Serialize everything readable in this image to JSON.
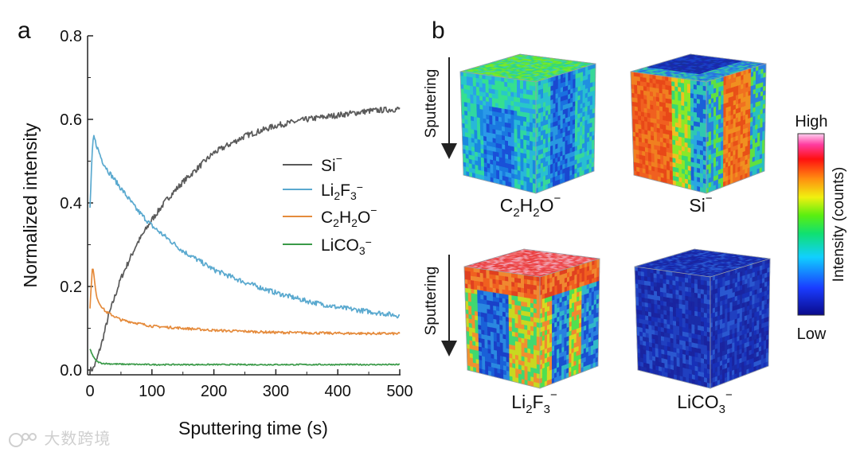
{
  "panel_a": {
    "label": "a"
  },
  "panel_b": {
    "label": "b",
    "sputtering_label": "Sputtering",
    "colorbar": {
      "high": "High",
      "low": "Low",
      "title": "Intensity (counts)"
    },
    "cubes": [
      {
        "id": "c2h2o",
        "base": "C",
        "sub1": "2",
        "mid": "H",
        "sub2": "2",
        "tail": "O",
        "sup": "−",
        "palette": "mixed-cyan"
      },
      {
        "id": "si",
        "base": "Si",
        "sub1": "",
        "mid": "",
        "sub2": "",
        "tail": "",
        "sup": "−",
        "palette": "orange-sides"
      },
      {
        "id": "li2f3",
        "base": "Li",
        "sub1": "2",
        "mid": "F",
        "sub2": "3",
        "tail": "",
        "sup": "−",
        "palette": "red-top"
      },
      {
        "id": "lico3",
        "base": "LiCO",
        "sub1": "3",
        "mid": "",
        "sub2": "",
        "tail": "",
        "sup": "−",
        "palette": "blue"
      }
    ]
  },
  "chart_data": {
    "type": "line",
    "title": "",
    "xlabel": "Sputtering time (s)",
    "ylabel": "Normalized intensity",
    "xlim": [
      0,
      500
    ],
    "ylim": [
      0,
      0.8
    ],
    "xticks": [
      "0",
      "100",
      "200",
      "300",
      "400",
      "500"
    ],
    "yticks": [
      "0.0",
      "0.2",
      "0.4",
      "0.6",
      "0.8"
    ],
    "legend_position": "center-right",
    "series": [
      {
        "name": "Si⁻",
        "label_base": "Si",
        "label_subs": [],
        "color": "#5a5a5a",
        "x": [
          0,
          5,
          10,
          20,
          30,
          50,
          75,
          100,
          125,
          150,
          200,
          250,
          300,
          350,
          400,
          450,
          500
        ],
        "y": [
          0.0,
          0.003,
          0.02,
          0.07,
          0.13,
          0.22,
          0.3,
          0.36,
          0.41,
          0.45,
          0.52,
          0.56,
          0.585,
          0.6,
          0.61,
          0.62,
          0.625
        ]
      },
      {
        "name": "Li₂F₃⁻",
        "label_base": "Li",
        "label_subs": [
          "2",
          "3"
        ],
        "color": "#5aa9cf",
        "x": [
          0,
          2,
          4,
          6,
          10,
          15,
          20,
          30,
          50,
          75,
          100,
          150,
          200,
          250,
          300,
          350,
          400,
          450,
          500
        ],
        "y": [
          0.39,
          0.46,
          0.53,
          0.56,
          0.54,
          0.52,
          0.5,
          0.475,
          0.435,
          0.385,
          0.345,
          0.285,
          0.24,
          0.21,
          0.185,
          0.165,
          0.15,
          0.14,
          0.13
        ]
      },
      {
        "name": "C₂H₂O⁻",
        "label_base": "C",
        "label_subs": [
          "2",
          "2"
        ],
        "color": "#e58b3c",
        "x": [
          0,
          2,
          4,
          6,
          10,
          15,
          25,
          50,
          100,
          200,
          300,
          400,
          500
        ],
        "y": [
          0.15,
          0.2,
          0.25,
          0.23,
          0.18,
          0.16,
          0.14,
          0.12,
          0.105,
          0.095,
          0.09,
          0.088,
          0.087
        ]
      },
      {
        "name": "LiCO₃⁻",
        "label_base": "LiCO",
        "label_subs": [
          "3"
        ],
        "color": "#3a9a48",
        "x": [
          0,
          3,
          6,
          10,
          15,
          20,
          30,
          50,
          100,
          200,
          300,
          400,
          500
        ],
        "y": [
          0.05,
          0.04,
          0.03,
          0.022,
          0.018,
          0.016,
          0.015,
          0.014,
          0.013,
          0.013,
          0.013,
          0.013,
          0.013
        ]
      }
    ]
  },
  "watermark": {
    "text": "大数跨境"
  }
}
